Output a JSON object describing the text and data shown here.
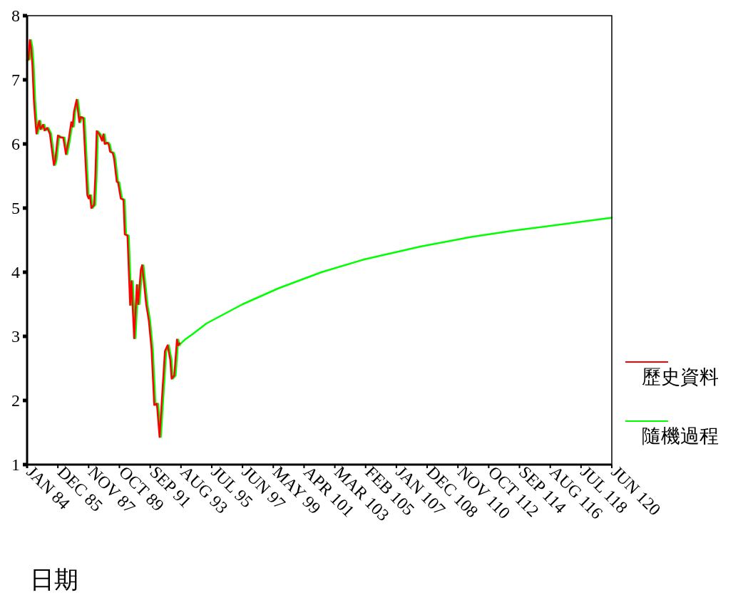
{
  "chart_data": {
    "type": "line",
    "xlabel": "日期",
    "xlim": [
      "1995-01",
      "2031-06"
    ],
    "ylim": [
      1,
      8
    ],
    "yticks": [
      1,
      2,
      3,
      4,
      5,
      6,
      7,
      8
    ],
    "xticks": [
      {
        "value": "1995-01",
        "label": "JAN 84"
      },
      {
        "value": "1996-12",
        "label": "DEC 85"
      },
      {
        "value": "1998-11",
        "label": "NOV 87"
      },
      {
        "value": "2000-10",
        "label": "OCT 89"
      },
      {
        "value": "2002-09",
        "label": "SEP 91"
      },
      {
        "value": "2004-08",
        "label": "AUG 93"
      },
      {
        "value": "2006-07",
        "label": "JUL 95"
      },
      {
        "value": "2008-06",
        "label": "JUN 97"
      },
      {
        "value": "2010-05",
        "label": "MAY 99"
      },
      {
        "value": "2012-04",
        "label": "APR 101"
      },
      {
        "value": "2014-03",
        "label": "MAR 103"
      },
      {
        "value": "2016-02",
        "label": "FEB 105"
      },
      {
        "value": "2018-01",
        "label": "JAN 107"
      },
      {
        "value": "2019-12",
        "label": "DEC 108"
      },
      {
        "value": "2021-11",
        "label": "NOV 110"
      },
      {
        "value": "2023-10",
        "label": "OCT 112"
      },
      {
        "value": "2025-09",
        "label": "SEP 114"
      },
      {
        "value": "2027-08",
        "label": "AUG 116"
      },
      {
        "value": "2029-07",
        "label": "JUL 118"
      },
      {
        "value": "2031-06",
        "label": "JUN 120"
      }
    ],
    "legend": "right",
    "grid": false,
    "line_style": "solid",
    "series": [
      {
        "name": "歷史資料",
        "color": "#ff0000",
        "x": [
          "1995-01",
          "1995-02",
          "1995-03",
          "1995-04",
          "1995-05",
          "1995-06",
          "1995-07",
          "1995-08",
          "1995-10",
          "1995-11",
          "1996-01",
          "1996-02",
          "1996-04",
          "1996-06",
          "1996-09",
          "1996-10",
          "1996-12",
          "1997-02",
          "1997-04",
          "1997-06",
          "1997-08",
          "1997-10",
          "1997-11",
          "1997-12",
          "1998-02",
          "1998-04",
          "1998-05",
          "1998-07",
          "1998-09",
          "1998-10",
          "1998-11",
          "1998-12",
          "1999-01",
          "1999-03",
          "1999-04",
          "1999-05",
          "1999-07",
          "1999-09",
          "1999-10",
          "1999-11",
          "2000-01",
          "2000-02",
          "2000-03",
          "2000-05",
          "2000-06",
          "2000-08",
          "2000-09",
          "2000-11",
          "2001-01",
          "2001-02",
          "2001-04",
          "2001-06",
          "2001-07",
          "2001-09",
          "2001-11",
          "2001-12",
          "2002-02",
          "2002-03",
          "2002-06",
          "2002-08",
          "2002-10",
          "2002-12",
          "2003-02",
          "2003-04",
          "2003-08",
          "2003-10",
          "2003-12",
          "2004-01",
          "2004-03",
          "2004-05",
          "2004-06",
          "2004-07"
        ],
        "values": [
          7.3,
          7.32,
          7.62,
          7.5,
          7.21,
          6.7,
          6.4,
          6.16,
          6.36,
          6.23,
          6.3,
          6.21,
          6.25,
          6.16,
          5.67,
          5.74,
          6.13,
          6.1,
          6.1,
          5.84,
          6.06,
          6.34,
          6.27,
          6.5,
          6.69,
          6.34,
          6.42,
          6.4,
          5.58,
          5.2,
          5.15,
          5.2,
          5.0,
          5.05,
          5.5,
          6.2,
          6.15,
          6.05,
          6.15,
          6.0,
          6.02,
          5.99,
          5.88,
          5.86,
          5.77,
          5.41,
          5.4,
          5.15,
          5.13,
          4.59,
          4.57,
          3.49,
          3.86,
          2.97,
          3.8,
          3.5,
          4.04,
          4.11,
          3.5,
          3.24,
          2.8,
          1.93,
          1.95,
          1.43,
          2.77,
          2.86,
          2.63,
          2.34,
          2.39,
          2.95,
          2.86,
          2.89
        ]
      },
      {
        "name": "隨機過程",
        "color": "#00ff00",
        "x": [
          "1995-01",
          "1995-03",
          "1995-04",
          "1995-05",
          "1995-06",
          "1995-07",
          "1995-08",
          "1995-09",
          "1995-11",
          "1995-12",
          "1996-02",
          "1996-03",
          "1996-05",
          "1996-07",
          "1996-10",
          "1996-11",
          "1997-01",
          "1997-03",
          "1997-05",
          "1997-07",
          "1997-09",
          "1997-11",
          "1997-12",
          "1998-01",
          "1998-03",
          "1998-05",
          "1998-06",
          "1998-08",
          "1998-10",
          "1998-11",
          "1998-12",
          "1999-01",
          "1999-02",
          "1999-04",
          "1999-05",
          "1999-06",
          "1999-08",
          "1999-10",
          "1999-11",
          "1999-12",
          "2000-02",
          "2000-03",
          "2000-04",
          "2000-06",
          "2000-07",
          "2000-09",
          "2000-10",
          "2000-12",
          "2001-02",
          "2001-03",
          "2001-05",
          "2001-07",
          "2001-08",
          "2001-10",
          "2001-12",
          "2002-01",
          "2002-03",
          "2002-04",
          "2002-07",
          "2002-09",
          "2002-11",
          "2003-01",
          "2003-03",
          "2003-05",
          "2003-09",
          "2003-11",
          "2004-01",
          "2004-02",
          "2004-04",
          "2004-06",
          "2004-07",
          "2004-08",
          "2004-11",
          "2005-05",
          "2006-03",
          "2008-06",
          "2010-09",
          "2013-05",
          "2016-01",
          "2019-07",
          "2022-09",
          "2025-05",
          "2028-06",
          "2031-06"
        ],
        "values": [
          7.3,
          7.32,
          7.62,
          7.5,
          7.21,
          6.7,
          6.4,
          6.16,
          6.36,
          6.23,
          6.3,
          6.21,
          6.25,
          6.16,
          5.67,
          5.74,
          6.13,
          6.1,
          6.1,
          5.84,
          6.06,
          6.34,
          6.27,
          6.5,
          6.69,
          6.34,
          6.42,
          6.4,
          5.58,
          5.2,
          5.15,
          5.2,
          5.0,
          5.05,
          5.5,
          6.2,
          6.15,
          6.05,
          6.15,
          6.0,
          6.02,
          5.99,
          5.88,
          5.86,
          5.77,
          5.41,
          5.4,
          5.15,
          5.13,
          4.59,
          4.57,
          3.49,
          3.86,
          2.97,
          3.8,
          3.5,
          4.04,
          4.11,
          3.5,
          3.24,
          2.8,
          1.93,
          1.95,
          1.43,
          2.77,
          2.86,
          2.63,
          2.34,
          2.39,
          2.95,
          2.86,
          2.89,
          2.95,
          3.04,
          3.2,
          3.5,
          3.75,
          4.0,
          4.2,
          4.4,
          4.55,
          4.65,
          4.75,
          4.85
        ]
      }
    ]
  }
}
